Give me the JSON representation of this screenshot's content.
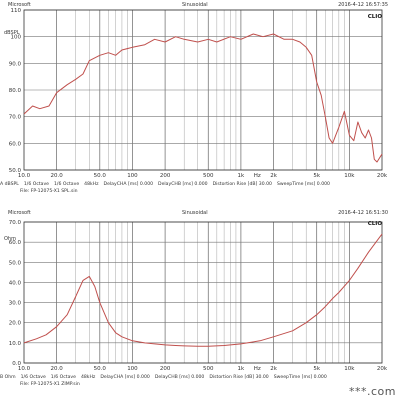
{
  "watermark": "***.com",
  "chart_data": [
    {
      "type": "line",
      "header": {
        "left": "Microsoft",
        "center": "Sinusoidal",
        "right": "2016-4-12 16:57:35"
      },
      "brand": "CLIO",
      "ylabel": "dBSPL",
      "yscale": "linear",
      "xscale": "log",
      "xlim": [
        10,
        20000
      ],
      "ylim": [
        50,
        110
      ],
      "xticks": [
        10,
        20,
        50,
        100,
        200,
        500,
        1000,
        2000,
        5000,
        10000,
        20000
      ],
      "xtick_labels": [
        "10.0",
        "20.0",
        "50.0",
        "100",
        "200",
        "500",
        "1k",
        "2k",
        "5k",
        "10k",
        "20k"
      ],
      "yticks": [
        50,
        60,
        70,
        80,
        90,
        100,
        110
      ],
      "ytick_labels": [
        "50.0",
        "60.0",
        "70.0",
        "80.0",
        "90.0",
        "100",
        "110"
      ],
      "unit_label": "Hz",
      "footer": [
        "A  dBSPL",
        "1/6 Octave",
        "1/6 Octave",
        "48kHz",
        "DelayCHA [ms] 0.000",
        "DelayCHB [ms] 0.000",
        "Distortion Rise [dB] 30.00",
        "SweepTime [ms] 0.000"
      ],
      "file_label": "File: FP-12075-X1 SPL.sin",
      "series": [
        {
          "color": "#c0504d",
          "x": [
            10,
            12,
            14,
            17,
            20,
            25,
            30,
            35,
            40,
            50,
            60,
            70,
            80,
            100,
            130,
            160,
            200,
            250,
            300,
            400,
            500,
            600,
            800,
            1000,
            1300,
            1600,
            2000,
            2500,
            3000,
            3500,
            4000,
            4500,
            5000,
            5500,
            6000,
            6500,
            7000,
            8000,
            9000,
            10000,
            11000,
            12000,
            13000,
            14000,
            15000,
            16000,
            17000,
            18000,
            20000
          ],
          "y": [
            71,
            74,
            73,
            74,
            79,
            82,
            84,
            86,
            91,
            93,
            94,
            93,
            95,
            96,
            97,
            99,
            98,
            100,
            99,
            98,
            99,
            98,
            100,
            99,
            101,
            100,
            101,
            99,
            99,
            98,
            96,
            93,
            83,
            78,
            70,
            62,
            60,
            66,
            72,
            63,
            61,
            68,
            64,
            62,
            65,
            62,
            54,
            53,
            56
          ]
        }
      ]
    },
    {
      "type": "line",
      "header": {
        "left": "Microsoft",
        "center": "Sinusoidal",
        "right": "2016-4-12 16:51:30"
      },
      "brand": "CLIO",
      "ylabel": "Ohm",
      "yscale": "linear",
      "xscale": "log",
      "xlim": [
        10,
        20000
      ],
      "ylim": [
        0,
        70
      ],
      "xticks": [
        10,
        20,
        50,
        100,
        200,
        500,
        1000,
        2000,
        5000,
        10000,
        20000
      ],
      "xtick_labels": [
        "10.0",
        "20.0",
        "50.0",
        "100",
        "200",
        "500",
        "1k",
        "2k",
        "5k",
        "10k",
        "20k"
      ],
      "yticks": [
        0,
        10,
        20,
        30,
        40,
        50,
        60,
        70
      ],
      "ytick_labels": [
        "0.0",
        "10.0",
        "20.0",
        "30.0",
        "40.0",
        "50.0",
        "60.0",
        "70.0"
      ],
      "unit_label": "Hz",
      "footer": [
        "B  Ohm",
        "1/6 Octave",
        "1/6 Octave",
        "48kHz",
        "DelayCHA [ms] 0.000",
        "DelayCHB [ms] 0.000",
        "Distortion Rise [dB] 30.00",
        "SweepTime [ms] 0.000"
      ],
      "file_label": "File: FP-12075-X1 ZIMP.sin",
      "series": [
        {
          "color": "#c0504d",
          "x": [
            10,
            13,
            16,
            20,
            25,
            30,
            35,
            40,
            45,
            50,
            60,
            70,
            80,
            100,
            130,
            160,
            200,
            250,
            300,
            400,
            500,
            700,
            1000,
            1500,
            2000,
            3000,
            4000,
            5000,
            6000,
            7000,
            8000,
            10000,
            12000,
            15000,
            20000
          ],
          "y": [
            10,
            12,
            14,
            18,
            24,
            33,
            41,
            43,
            38,
            30,
            20,
            15,
            13,
            11,
            10,
            9.5,
            9,
            8.7,
            8.5,
            8.3,
            8.3,
            8.7,
            9.5,
            11,
            13,
            16,
            20,
            24,
            28,
            32,
            35,
            41,
            47,
            55,
            64
          ]
        }
      ]
    }
  ]
}
